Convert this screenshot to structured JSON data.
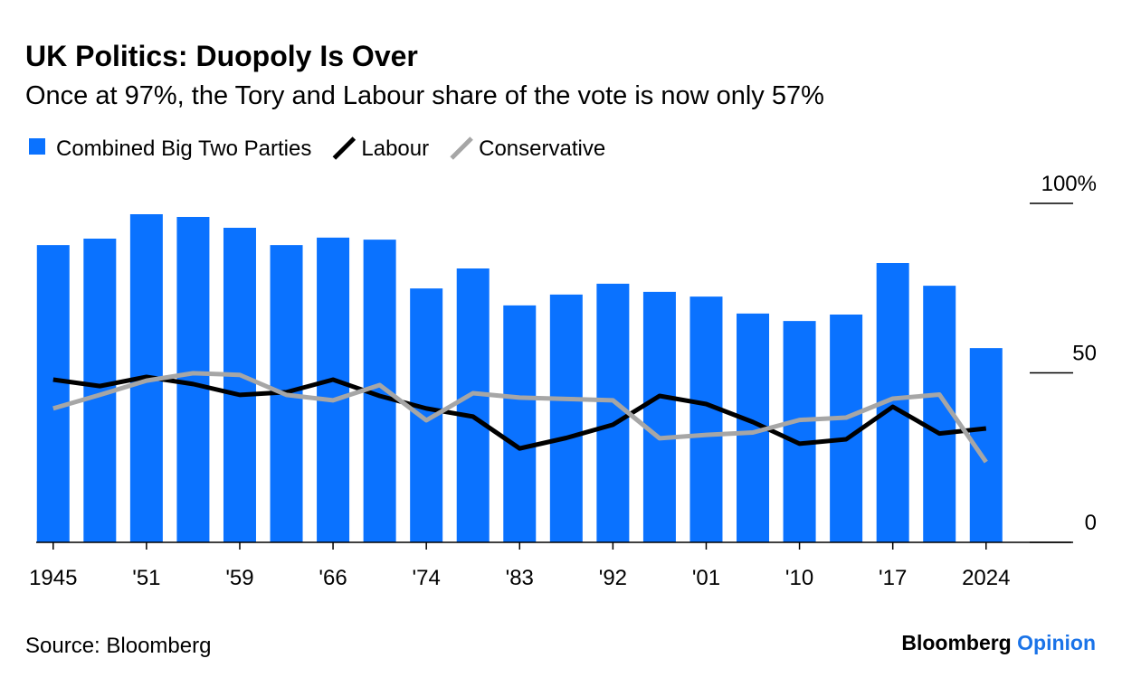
{
  "chart_data": {
    "type": "bar_line",
    "title": "UK Politics: Duopoly Is Over",
    "subtitle": "Once at 97%, the Tory and Labour share of the vote is now only 57%",
    "categories": [
      "1945",
      null,
      "'51",
      null,
      "'59",
      null,
      "'66",
      null,
      "'74",
      null,
      "'83",
      null,
      "'92",
      null,
      "'01",
      null,
      "'10",
      null,
      "'17",
      null,
      "2024"
    ],
    "series": [
      {
        "name": "Combined Big Two Parties",
        "type": "bar",
        "color": "#0a72ff",
        "values": [
          87.7,
          89.6,
          96.8,
          96.0,
          92.8,
          87.7,
          89.9,
          89.3,
          74.9,
          80.8,
          69.9,
          73.1,
          76.3,
          73.9,
          72.5,
          67.5,
          65.3,
          67.2,
          82.4,
          75.7,
          57.3
        ]
      },
      {
        "name": "Labour",
        "type": "line",
        "color": "#000000",
        "values": [
          48.0,
          46.1,
          48.8,
          46.7,
          43.5,
          44.3,
          48.0,
          43.2,
          39.5,
          37.1,
          27.7,
          30.8,
          34.7,
          43.2,
          40.8,
          35.5,
          29.1,
          30.4,
          40.0,
          32.1,
          33.6
        ]
      },
      {
        "name": "Conservative",
        "type": "line",
        "color": "#a6a6a6",
        "values": [
          39.5,
          43.5,
          47.7,
          49.9,
          49.4,
          43.5,
          41.9,
          46.4,
          36.0,
          44.0,
          42.7,
          42.3,
          41.9,
          30.7,
          31.7,
          32.4,
          36.1,
          36.8,
          42.4,
          43.6,
          23.7
        ]
      }
    ],
    "ylim": [
      0,
      100
    ],
    "yticks": [
      0,
      50,
      {
        "value": 100,
        "label": "100%"
      }
    ],
    "source": "Source: Bloomberg",
    "brand": {
      "name": "Bloomberg",
      "section": "Opinion"
    }
  }
}
